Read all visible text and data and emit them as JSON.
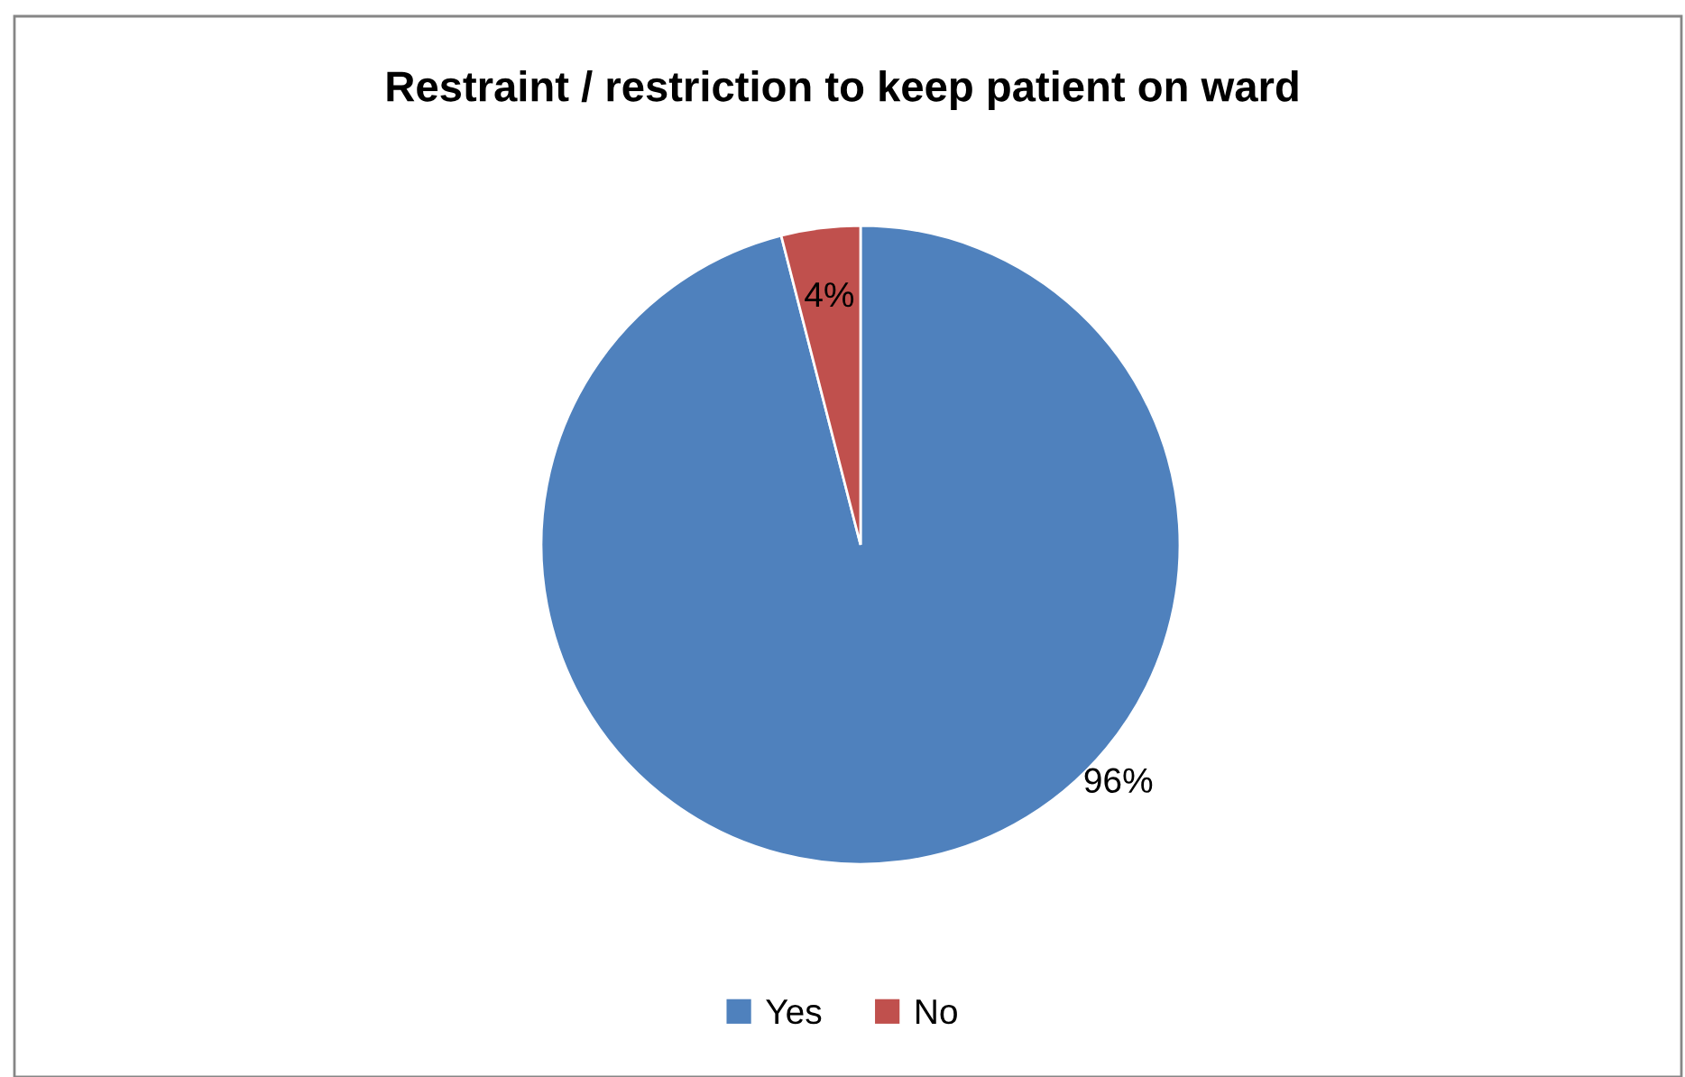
{
  "chart_data": {
    "type": "pie",
    "title": "Restraint / restriction to keep patient on ward",
    "categories": [
      "Yes",
      "No"
    ],
    "values": [
      96,
      4
    ],
    "colors": [
      "#4f81bd",
      "#c0504d"
    ],
    "value_labels": [
      "96%",
      "4%"
    ],
    "legend": "bottom"
  }
}
